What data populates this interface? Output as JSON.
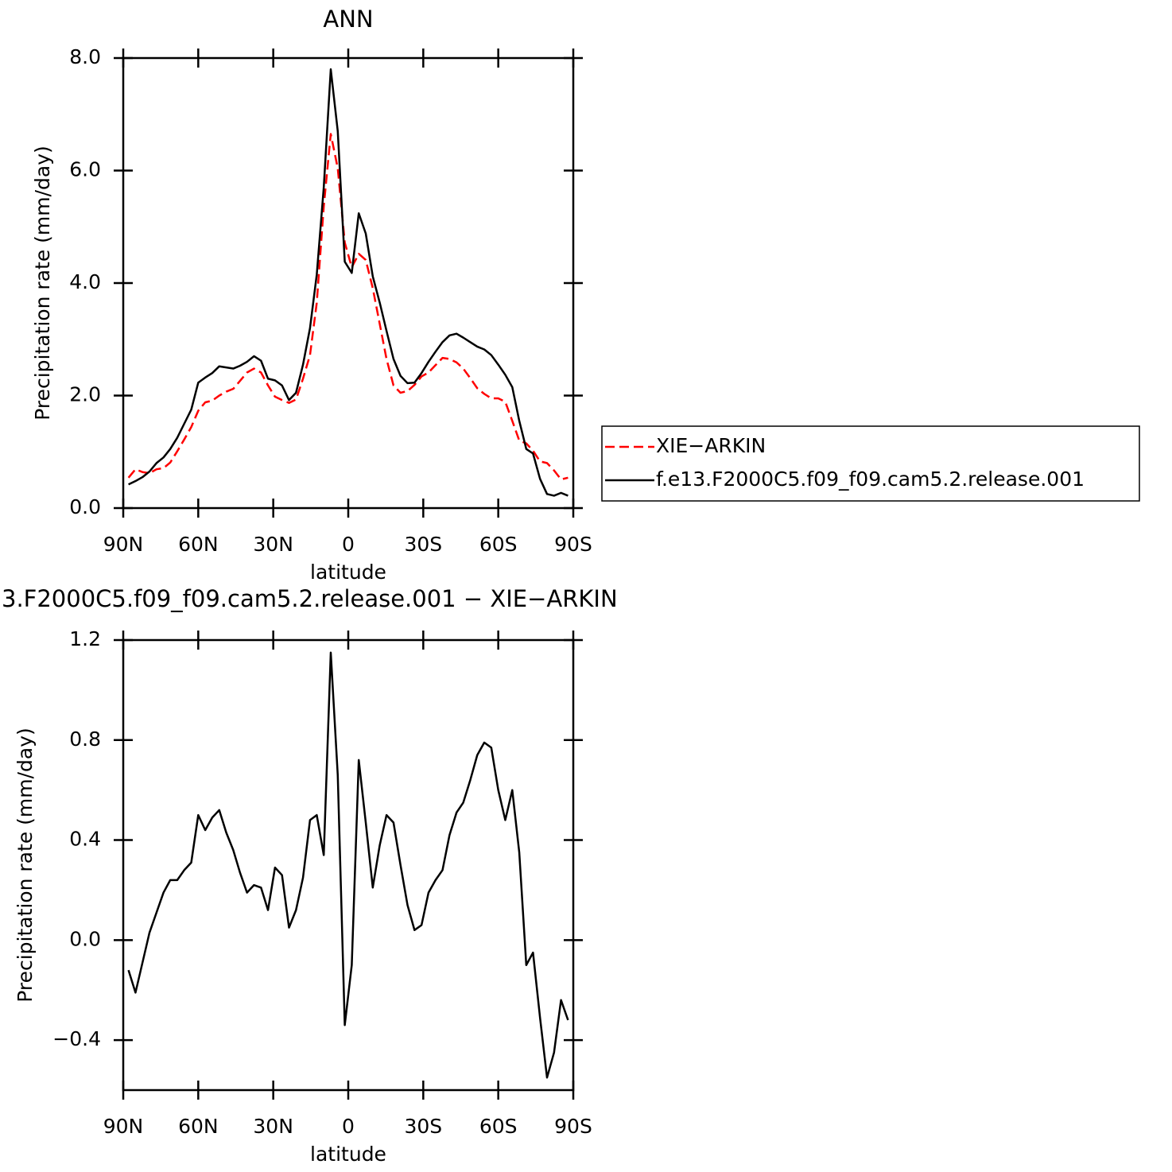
{
  "chart_data": [
    {
      "type": "line",
      "title": "ANN",
      "xlabel": "latitude",
      "ylabel": "Precipitation rate (mm/day)",
      "x": [
        87.9,
        85.1,
        82.3,
        79.5,
        76.7,
        73.9,
        71.2,
        68.4,
        65.6,
        62.8,
        60.0,
        57.2,
        54.4,
        51.6,
        48.8,
        46.0,
        43.3,
        40.5,
        37.7,
        34.9,
        32.1,
        29.3,
        26.5,
        23.7,
        20.9,
        18.1,
        15.3,
        12.6,
        9.8,
        7.0,
        4.2,
        1.4,
        -1.4,
        -4.2,
        -7.0,
        -9.8,
        -12.6,
        -15.3,
        -18.1,
        -20.9,
        -23.7,
        -26.5,
        -29.3,
        -32.1,
        -34.9,
        -37.7,
        -40.5,
        -43.3,
        -46.0,
        -48.8,
        -51.6,
        -54.4,
        -57.2,
        -60.0,
        -62.8,
        -65.6,
        -68.4,
        -71.2,
        -73.9,
        -76.7,
        -79.5,
        -82.3,
        -85.1,
        -87.9
      ],
      "series": [
        {
          "name": "XIE−ARKIN",
          "color": "#ff0000",
          "style": "dashed",
          "values": [
            0.54,
            0.69,
            0.64,
            0.62,
            0.69,
            0.71,
            0.81,
            1.01,
            1.22,
            1.44,
            1.73,
            1.88,
            1.91,
            2.0,
            2.07,
            2.12,
            2.26,
            2.41,
            2.48,
            2.41,
            2.18,
            1.98,
            1.92,
            1.87,
            1.93,
            2.3,
            2.72,
            3.65,
            5.36,
            6.65,
            6.04,
            4.72,
            4.28,
            4.52,
            4.41,
            3.91,
            3.27,
            2.65,
            2.18,
            2.05,
            2.08,
            2.19,
            2.34,
            2.41,
            2.54,
            2.67,
            2.65,
            2.59,
            2.48,
            2.31,
            2.13,
            2.03,
            1.95,
            1.95,
            1.89,
            1.55,
            1.2,
            1.15,
            1.02,
            0.83,
            0.8,
            0.67,
            0.51,
            0.54
          ]
        },
        {
          "name": "f.e13.F2000C5.f09_f09.cam5.2.release.001",
          "color": "#000000",
          "style": "solid",
          "values": [
            0.42,
            0.48,
            0.55,
            0.65,
            0.8,
            0.9,
            1.05,
            1.25,
            1.5,
            1.75,
            2.23,
            2.32,
            2.4,
            2.52,
            2.5,
            2.48,
            2.53,
            2.6,
            2.7,
            2.62,
            2.3,
            2.27,
            2.18,
            1.92,
            2.05,
            2.55,
            3.2,
            4.15,
            5.7,
            7.8,
            6.7,
            4.38,
            4.18,
            5.24,
            4.88,
            4.12,
            3.65,
            3.15,
            2.65,
            2.35,
            2.22,
            2.23,
            2.4,
            2.6,
            2.78,
            2.95,
            3.07,
            3.1,
            3.03,
            2.95,
            2.87,
            2.82,
            2.72,
            2.55,
            2.37,
            2.15,
            1.55,
            1.05,
            0.97,
            0.52,
            0.25,
            0.22,
            0.27,
            0.22
          ]
        }
      ],
      "xlim": [
        90,
        -90
      ],
      "xticks": [
        {
          "value": 90,
          "label": "90N"
        },
        {
          "value": 60,
          "label": "60N"
        },
        {
          "value": 30,
          "label": "30N"
        },
        0,
        {
          "value": -30,
          "label": "30S"
        },
        {
          "value": -60,
          "label": "60S"
        },
        {
          "value": -90,
          "label": "90S"
        }
      ],
      "ylim": [
        0,
        8
      ],
      "yticks": [
        {
          "value": 0,
          "label": "0.0"
        },
        {
          "value": 2,
          "label": "2.0"
        },
        {
          "value": 4,
          "label": "4.0"
        },
        {
          "value": 6,
          "label": "6.0"
        },
        {
          "value": 8,
          "label": "8.0"
        }
      ],
      "legend": "outside-right"
    },
    {
      "type": "line",
      "title": "3.F2000C5.f09_f09.cam5.2.release.001 − XIE−ARKIN",
      "xlabel": "latitude",
      "ylabel": "Precipitation rate (mm/day)",
      "x": [
        87.9,
        85.1,
        82.3,
        79.5,
        76.7,
        73.9,
        71.2,
        68.4,
        65.6,
        62.8,
        60.0,
        57.2,
        54.4,
        51.6,
        48.8,
        46.0,
        43.3,
        40.5,
        37.7,
        34.9,
        32.1,
        29.3,
        26.5,
        23.7,
        20.9,
        18.1,
        15.3,
        12.6,
        9.8,
        7.0,
        4.2,
        1.4,
        -1.4,
        -4.2,
        -7.0,
        -9.8,
        -12.6,
        -15.3,
        -18.1,
        -20.9,
        -23.7,
        -26.5,
        -29.3,
        -32.1,
        -34.9,
        -37.7,
        -40.5,
        -43.3,
        -46.0,
        -48.8,
        -51.6,
        -54.4,
        -57.2,
        -60.0,
        -62.8,
        -65.6,
        -68.4,
        -71.2,
        -73.9,
        -76.7,
        -79.5,
        -82.3,
        -85.1,
        -87.9
      ],
      "color": "#000000",
      "values": [
        -0.12,
        -0.21,
        -0.09,
        0.03,
        0.11,
        0.19,
        0.24,
        0.24,
        0.28,
        0.31,
        0.5,
        0.44,
        0.49,
        0.52,
        0.43,
        0.36,
        0.27,
        0.19,
        0.22,
        0.21,
        0.12,
        0.29,
        0.26,
        0.05,
        0.12,
        0.25,
        0.48,
        0.5,
        0.34,
        1.15,
        0.66,
        -0.34,
        -0.1,
        0.72,
        0.47,
        0.21,
        0.38,
        0.5,
        0.47,
        0.3,
        0.14,
        0.04,
        0.06,
        0.19,
        0.24,
        0.28,
        0.42,
        0.51,
        0.55,
        0.64,
        0.74,
        0.79,
        0.77,
        0.6,
        0.48,
        0.6,
        0.35,
        -0.1,
        -0.05,
        -0.31,
        -0.55,
        -0.45,
        -0.24,
        -0.32
      ],
      "xlim": [
        90,
        -90
      ],
      "xticks": [
        {
          "value": 90,
          "label": "90N"
        },
        {
          "value": 60,
          "label": "60N"
        },
        {
          "value": 30,
          "label": "30N"
        },
        0,
        {
          "value": -30,
          "label": "30S"
        },
        {
          "value": -60,
          "label": "60S"
        },
        {
          "value": -90,
          "label": "90S"
        }
      ],
      "ylim": [
        -0.6,
        1.2
      ],
      "yticks": [
        {
          "value": -0.4,
          "label": "−0.4"
        },
        {
          "value": 0,
          "label": "0.0"
        },
        0.4,
        0.8,
        1.2
      ]
    }
  ]
}
